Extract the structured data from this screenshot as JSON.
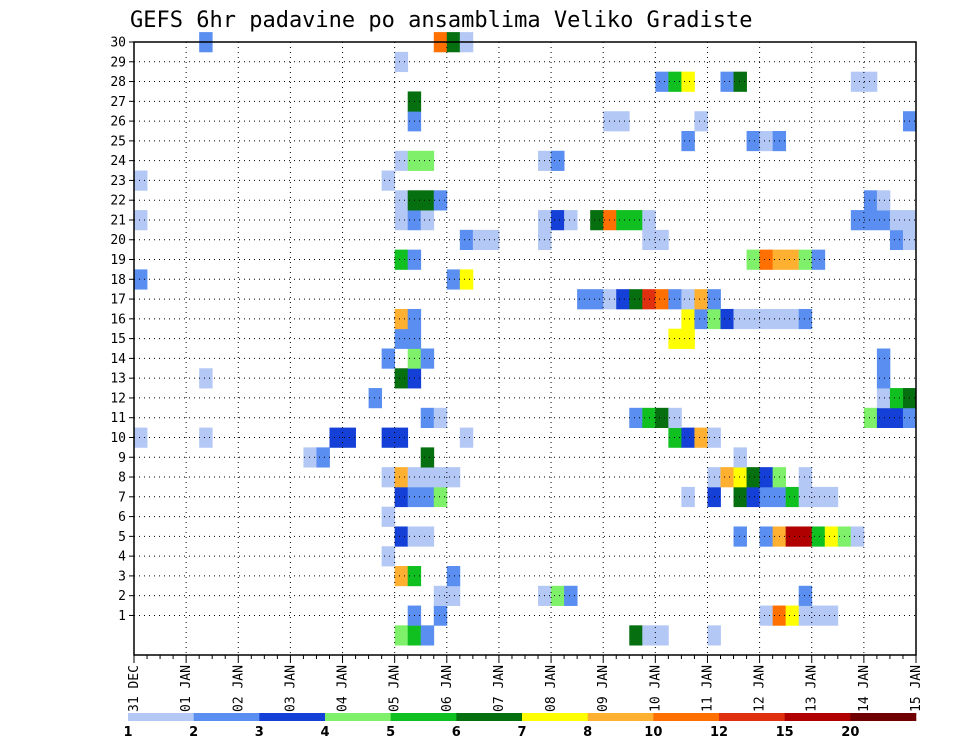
{
  "chart_data": {
    "type": "heatmap",
    "title": "GEFS 6hr padavine po ansamblima Veliko Gradiste",
    "x_ticks": [
      "31 DEC",
      "01 JAN",
      "02 JAN",
      "03 JAN",
      "04 JAN",
      "05 JAN",
      "06 JAN",
      "07 JAN",
      "08 JAN",
      "09 JAN",
      "10 JAN",
      "11 JAN",
      "12 JAN",
      "13 JAN",
      "14 JAN",
      "15 JAN"
    ],
    "x_start": "2018-12-31 00:00",
    "x_step_hours": 6,
    "x_steps": 60,
    "y_ticks": [
      1,
      2,
      3,
      4,
      5,
      6,
      7,
      8,
      9,
      10,
      11,
      12,
      13,
      14,
      15,
      16,
      17,
      18,
      19,
      20,
      21,
      22,
      23,
      24,
      25,
      26,
      27,
      28,
      29,
      30
    ],
    "ylim": [
      0,
      30
    ],
    "grid": true,
    "legend": {
      "placement": "bottom",
      "labels": [
        "1",
        "2",
        "3",
        "4",
        "5",
        "6",
        "7",
        "8",
        "10",
        "12",
        "15",
        "20"
      ],
      "colors": [
        "#b4c8f5",
        "#5a8ef0",
        "#1440d8",
        "#7ff06a",
        "#10c020",
        "#067010",
        "#ffff00",
        "#ffb030",
        "#ff7000",
        "#e03010",
        "#b00000",
        "#700000"
      ]
    },
    "colors": {
      "A": "#b4c8f5",
      "B": "#5a8ef0",
      "C": "#1440d8",
      "D": "#7ff06a",
      "E": "#10c020",
      "F": "#067010",
      "G": "#ffff00",
      "H": "#ffb030",
      "I": "#ff7000",
      "J": "#e03010",
      "K": "#b00000",
      "L": "#700000"
    },
    "rows": {
      "30": [
        [
          5,
          "B"
        ],
        [
          23,
          "I"
        ],
        [
          24,
          "F"
        ],
        [
          25,
          "A"
        ]
      ],
      "29": [
        [
          20,
          "A"
        ]
      ],
      "28": [
        [
          40,
          "B"
        ],
        [
          41,
          "E"
        ],
        [
          42,
          "G"
        ],
        [
          45,
          "B"
        ],
        [
          46,
          "F"
        ],
        [
          55,
          "A"
        ],
        [
          56,
          "A"
        ]
      ],
      "27": [
        [
          21,
          "F"
        ]
      ],
      "26": [
        [
          21,
          "B"
        ],
        [
          36,
          "A"
        ],
        [
          37,
          "A"
        ],
        [
          43,
          "A"
        ],
        [
          59,
          "B"
        ]
      ],
      "25": [
        [
          42,
          "B"
        ],
        [
          47,
          "B"
        ],
        [
          48,
          "A"
        ],
        [
          49,
          "B"
        ]
      ],
      "24": [
        [
          20,
          "A"
        ],
        [
          21,
          "D"
        ],
        [
          22,
          "D"
        ],
        [
          31,
          "A"
        ],
        [
          32,
          "B"
        ]
      ],
      "23": [
        [
          0,
          "A"
        ],
        [
          19,
          "A"
        ]
      ],
      "22": [
        [
          20,
          "A"
        ],
        [
          21,
          "F"
        ],
        [
          22,
          "F"
        ],
        [
          23,
          "B"
        ],
        [
          56,
          "B"
        ],
        [
          57,
          "A"
        ]
      ],
      "21": [
        [
          0,
          "A"
        ],
        [
          20,
          "A"
        ],
        [
          21,
          "B"
        ],
        [
          22,
          "A"
        ],
        [
          31,
          "A"
        ],
        [
          32,
          "C"
        ],
        [
          33,
          "A"
        ],
        [
          35,
          "F"
        ],
        [
          36,
          "I"
        ],
        [
          37,
          "E"
        ],
        [
          38,
          "E"
        ],
        [
          39,
          "A"
        ],
        [
          55,
          "B"
        ],
        [
          56,
          "B"
        ],
        [
          57,
          "B"
        ],
        [
          58,
          "A"
        ],
        [
          59,
          "A"
        ]
      ],
      "20": [
        [
          25,
          "B"
        ],
        [
          26,
          "A"
        ],
        [
          27,
          "A"
        ],
        [
          31,
          "A"
        ],
        [
          39,
          "A"
        ],
        [
          40,
          "A"
        ],
        [
          58,
          "B"
        ],
        [
          59,
          "A"
        ]
      ],
      "19": [
        [
          20,
          "E"
        ],
        [
          21,
          "B"
        ],
        [
          47,
          "D"
        ],
        [
          48,
          "I"
        ],
        [
          49,
          "H"
        ],
        [
          50,
          "H"
        ],
        [
          51,
          "D"
        ],
        [
          52,
          "B"
        ]
      ],
      "18": [
        [
          0,
          "B"
        ],
        [
          24,
          "B"
        ],
        [
          25,
          "G"
        ]
      ],
      "17": [
        [
          34,
          "B"
        ],
        [
          35,
          "B"
        ],
        [
          36,
          "A"
        ],
        [
          37,
          "C"
        ],
        [
          38,
          "F"
        ],
        [
          39,
          "J"
        ],
        [
          40,
          "I"
        ],
        [
          41,
          "B"
        ],
        [
          42,
          "A"
        ],
        [
          43,
          "H"
        ],
        [
          44,
          "B"
        ]
      ],
      "16": [
        [
          20,
          "H"
        ],
        [
          21,
          "B"
        ],
        [
          42,
          "G"
        ],
        [
          43,
          "B"
        ],
        [
          44,
          "D"
        ],
        [
          45,
          "C"
        ],
        [
          46,
          "A"
        ],
        [
          47,
          "A"
        ],
        [
          48,
          "A"
        ],
        [
          49,
          "A"
        ],
        [
          50,
          "A"
        ],
        [
          51,
          "B"
        ]
      ],
      "15": [
        [
          20,
          "B"
        ],
        [
          21,
          "B"
        ],
        [
          41,
          "G"
        ],
        [
          42,
          "G"
        ]
      ],
      "14": [
        [
          19,
          "B"
        ],
        [
          21,
          "D"
        ],
        [
          22,
          "B"
        ],
        [
          57,
          "B"
        ]
      ],
      "13": [
        [
          5,
          "A"
        ],
        [
          20,
          "F"
        ],
        [
          21,
          "C"
        ],
        [
          57,
          "B"
        ]
      ],
      "12": [
        [
          18,
          "B"
        ],
        [
          57,
          "A"
        ],
        [
          58,
          "E"
        ],
        [
          59,
          "F"
        ]
      ],
      "11": [
        [
          22,
          "B"
        ],
        [
          23,
          "A"
        ],
        [
          38,
          "B"
        ],
        [
          39,
          "E"
        ],
        [
          40,
          "F"
        ],
        [
          41,
          "A"
        ],
        [
          56,
          "D"
        ],
        [
          57,
          "C"
        ],
        [
          58,
          "C"
        ],
        [
          59,
          "B"
        ]
      ],
      "10": [
        [
          0,
          "A"
        ],
        [
          5,
          "A"
        ],
        [
          15,
          "C"
        ],
        [
          16,
          "C"
        ],
        [
          19,
          "C"
        ],
        [
          20,
          "C"
        ],
        [
          25,
          "A"
        ],
        [
          41,
          "E"
        ],
        [
          42,
          "C"
        ],
        [
          43,
          "H"
        ],
        [
          44,
          "A"
        ]
      ],
      "9": [
        [
          13,
          "A"
        ],
        [
          14,
          "B"
        ],
        [
          22,
          "F"
        ],
        [
          46,
          "A"
        ]
      ],
      "8": [
        [
          19,
          "A"
        ],
        [
          20,
          "H"
        ],
        [
          21,
          "A"
        ],
        [
          22,
          "A"
        ],
        [
          23,
          "A"
        ],
        [
          24,
          "A"
        ],
        [
          44,
          "A"
        ],
        [
          45,
          "H"
        ],
        [
          46,
          "G"
        ],
        [
          47,
          "F"
        ],
        [
          48,
          "C"
        ],
        [
          49,
          "D"
        ],
        [
          51,
          "A"
        ]
      ],
      "7": [
        [
          20,
          "C"
        ],
        [
          21,
          "B"
        ],
        [
          22,
          "B"
        ],
        [
          23,
          "D"
        ],
        [
          42,
          "A"
        ],
        [
          44,
          "C"
        ],
        [
          46,
          "F"
        ],
        [
          47,
          "C"
        ],
        [
          48,
          "B"
        ],
        [
          49,
          "B"
        ],
        [
          50,
          "E"
        ],
        [
          51,
          "A"
        ],
        [
          52,
          "A"
        ],
        [
          53,
          "A"
        ]
      ],
      "6": [
        [
          19,
          "A"
        ]
      ],
      "5": [
        [
          20,
          "C"
        ],
        [
          21,
          "A"
        ],
        [
          22,
          "A"
        ],
        [
          46,
          "B"
        ],
        [
          48,
          "B"
        ],
        [
          49,
          "H"
        ],
        [
          50,
          "K"
        ],
        [
          51,
          "K"
        ],
        [
          52,
          "E"
        ],
        [
          53,
          "G"
        ],
        [
          54,
          "D"
        ],
        [
          55,
          "A"
        ]
      ],
      "4": [
        [
          19,
          "A"
        ]
      ],
      "3": [
        [
          20,
          "H"
        ],
        [
          21,
          "E"
        ],
        [
          24,
          "B"
        ]
      ],
      "2": [
        [
          23,
          "A"
        ],
        [
          24,
          "A"
        ],
        [
          31,
          "A"
        ],
        [
          32,
          "D"
        ],
        [
          33,
          "B"
        ],
        [
          51,
          "B"
        ]
      ],
      "1": [
        [
          21,
          "B"
        ],
        [
          23,
          "B"
        ],
        [
          48,
          "A"
        ],
        [
          49,
          "I"
        ],
        [
          50,
          "G"
        ],
        [
          51,
          "A"
        ],
        [
          52,
          "A"
        ],
        [
          53,
          "A"
        ]
      ],
      "0": [
        [
          20,
          "D"
        ],
        [
          21,
          "E"
        ],
        [
          22,
          "B"
        ],
        [
          38,
          "F"
        ],
        [
          39,
          "A"
        ],
        [
          40,
          "A"
        ],
        [
          44,
          "A"
        ]
      ]
    }
  }
}
